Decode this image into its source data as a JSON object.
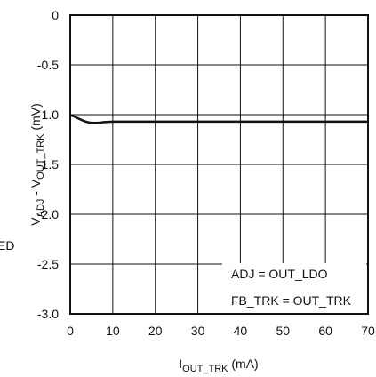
{
  "chart_data": {
    "type": "line",
    "title": "",
    "xlabel_main": "I",
    "xlabel_sub": "OUT_TRK",
    "xlabel_unit": " (mA)",
    "ylabel_v1": "V",
    "ylabel_sub1": "ADJ",
    "ylabel_mid": " - V",
    "ylabel_sub2": "OUT_TRK",
    "ylabel_unit": " (mV)",
    "left_clipped_label": "ED",
    "xlim": [
      0,
      70
    ],
    "ylim": [
      -3.0,
      0
    ],
    "x_ticks": [
      "0",
      "10",
      "20",
      "30",
      "40",
      "50",
      "60",
      "70"
    ],
    "y_ticks": [
      "0",
      "-0.5",
      "-1.0",
      "-1.5",
      "-2.0",
      "-2.5",
      "-3.0"
    ],
    "grid": true,
    "annotations": [
      "ADJ = OUT_LDO",
      "FB_TRK = OUT_TRK"
    ],
    "series": [
      {
        "color": "#111111",
        "x": [
          0,
          0.5,
          1,
          2,
          3,
          4,
          5,
          6,
          7,
          8,
          10,
          15,
          20,
          30,
          40,
          50,
          60,
          70
        ],
        "y": [
          -1.01,
          -1.01,
          -1.02,
          -1.04,
          -1.06,
          -1.075,
          -1.082,
          -1.083,
          -1.08,
          -1.075,
          -1.07,
          -1.07,
          -1.07,
          -1.07,
          -1.07,
          -1.07,
          -1.07,
          -1.07
        ]
      }
    ]
  }
}
